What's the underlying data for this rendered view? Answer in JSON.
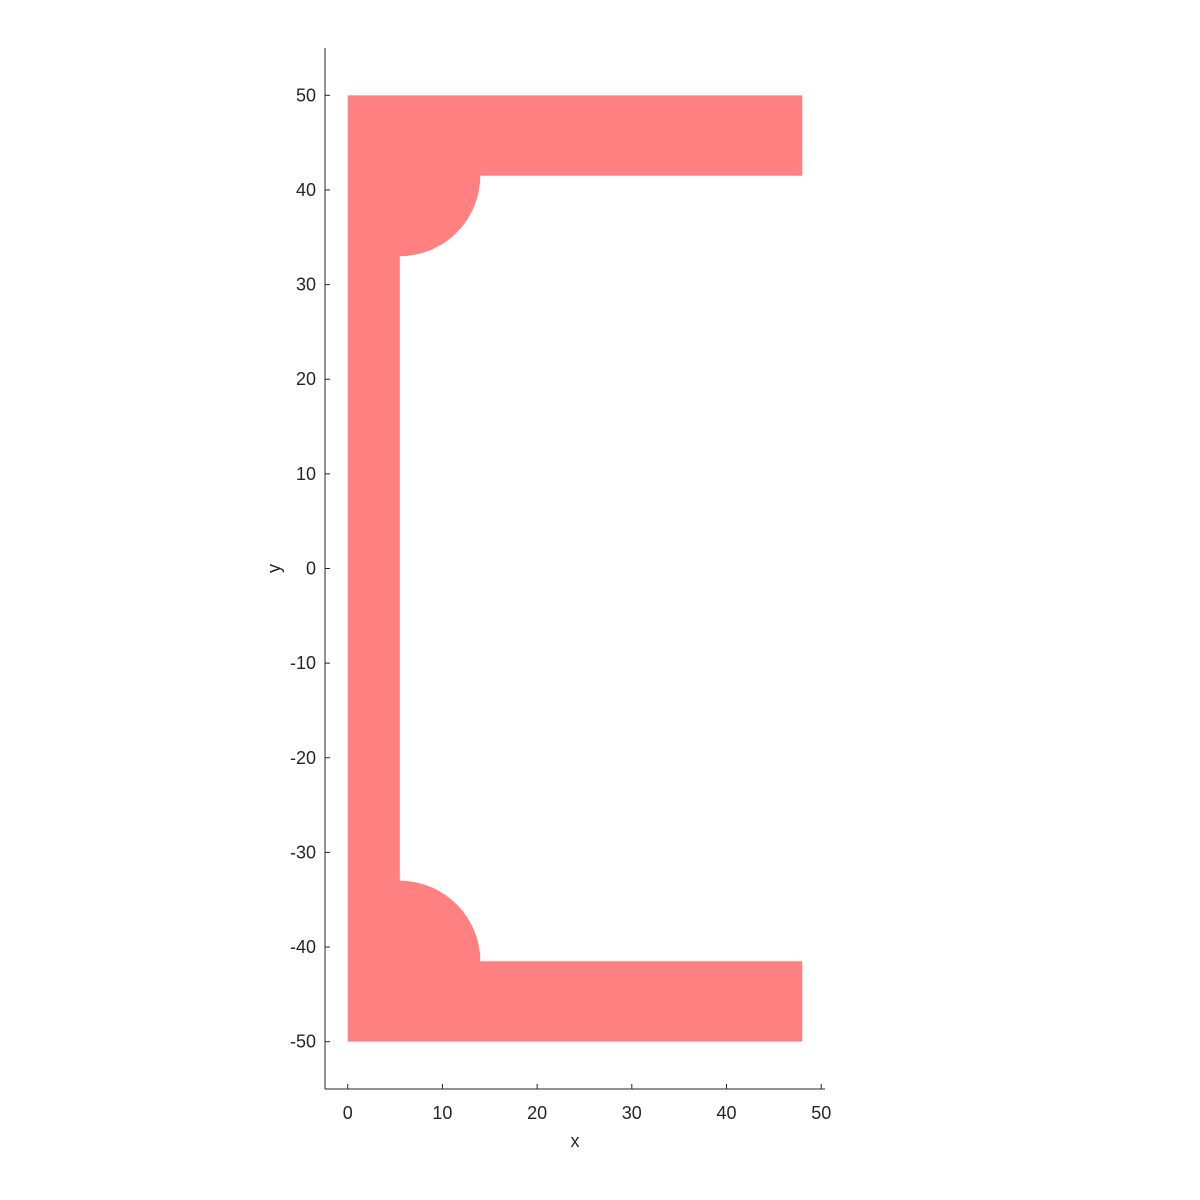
{
  "chart_data": {
    "type": "area",
    "title": "",
    "xlabel": "x",
    "ylabel": "y",
    "xlim": [
      -2.4,
      50.4
    ],
    "ylim": [
      -55,
      55
    ],
    "xticks": [
      0,
      10,
      20,
      30,
      40,
      50
    ],
    "yticks": [
      -50,
      -40,
      -30,
      -20,
      -10,
      0,
      10,
      20,
      30,
      40,
      50
    ],
    "xtick_labels": [
      "0",
      "10",
      "20",
      "30",
      "40",
      "50"
    ],
    "ytick_labels": [
      "-50",
      "-40",
      "-30",
      "-20",
      "-10",
      "0",
      "10",
      "20",
      "30",
      "40",
      "50"
    ],
    "grid": false,
    "equal_aspect": true,
    "fill_color": "#ff8080",
    "axis_color": "#262626",
    "shape": {
      "name": "channel-section",
      "flange_width": 48,
      "depth": 100,
      "web_thickness": 5.5,
      "flange_thickness": 8.5,
      "root_radius": 8.5
    }
  }
}
